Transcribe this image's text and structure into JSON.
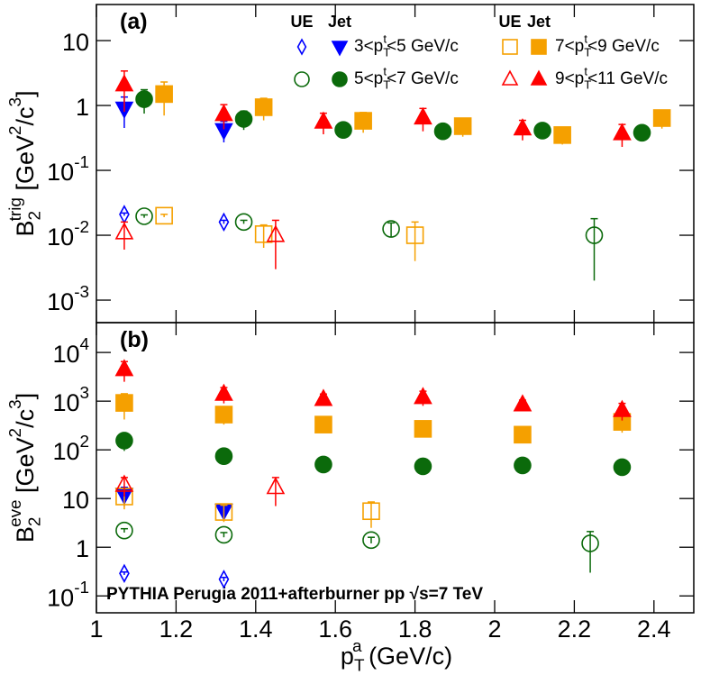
{
  "chart_data": [
    {
      "type": "scatter",
      "panel": "(a)",
      "ylabel": "B_{2}^{trig} [GeV^{2}/c^{3}]",
      "log_y": true,
      "ylim": [
        0.00045,
        36
      ],
      "yticks": [
        {
          "value": 0.001,
          "label": "10^{-3}"
        },
        {
          "value": 0.01,
          "label": "10^{-2}"
        },
        {
          "value": 0.1,
          "label": "10^{-1}"
        },
        1,
        10
      ],
      "legend_headers": [
        "UE",
        "Jet"
      ],
      "series": [
        {
          "name": "3<p_{T}^{t}<5 GeV/c",
          "color": "#0000ff",
          "ue": {
            "marker": "diamond",
            "filled": false,
            "x": [
              1.07,
              1.32
            ],
            "values": [
              0.021,
              0.016
            ],
            "errors": [
              0.001,
              0.001
            ]
          },
          "jet": {
            "marker": "triangle-down",
            "filled": true,
            "x": [
              1.07,
              1.32
            ],
            "values": [
              0.9,
              0.42
            ],
            "errors": [
              0.45,
              0.15
            ]
          }
        },
        {
          "name": "5<p_{T}^{t}<7 GeV/c",
          "color": "#0b6a0b",
          "ue": {
            "marker": "circle",
            "filled": false,
            "x": [
              1.12,
              1.37,
              1.74,
              2.25
            ],
            "values": [
              0.0196,
              0.016,
              0.0125,
              0.01
            ],
            "errors": [
              0.001,
              0.001,
              0.003,
              0.008
            ]
          },
          "jet": {
            "marker": "circle",
            "filled": true,
            "x": [
              1.12,
              1.37,
              1.62,
              1.87,
              2.12,
              2.37
            ],
            "values": [
              1.25,
              0.62,
              0.42,
              0.4,
              0.41,
              0.38
            ],
            "errors": [
              0.5,
              0.2,
              0.1,
              0.1,
              0.1,
              0.1
            ]
          }
        },
        {
          "name": "7<p_{T}^{t}<9 GeV/c",
          "color": "#f5a000",
          "ue": {
            "marker": "square",
            "filled": false,
            "x": [
              1.17,
              1.42,
              1.8
            ],
            "values": [
              0.02,
              0.0104,
              0.01
            ],
            "errors": [
              0.001,
              0.004,
              0.006
            ]
          },
          "jet": {
            "marker": "square",
            "filled": true,
            "x": [
              1.17,
              1.42,
              1.67,
              1.92,
              2.17,
              2.42
            ],
            "values": [
              1.5,
              0.94,
              0.58,
              0.48,
              0.35,
              0.64
            ],
            "errors": [
              0.8,
              0.35,
              0.2,
              0.15,
              0.1,
              0.2
            ]
          }
        },
        {
          "name": "9<p_{T}^{t}<11 GeV/c",
          "color": "#ff0000",
          "ue": {
            "marker": "triangle-up",
            "filled": false,
            "x": [
              1.07,
              1.45
            ],
            "values": [
              0.011,
              0.01
            ],
            "errors": [
              0.005,
              0.007
            ]
          },
          "jet": {
            "marker": "triangle-up",
            "filled": true,
            "x": [
              1.07,
              1.32,
              1.57,
              1.82,
              2.07,
              2.32
            ],
            "values": [
              2.1,
              0.73,
              0.56,
              0.65,
              0.44,
              0.37
            ],
            "errors": [
              1.3,
              0.3,
              0.2,
              0.25,
              0.15,
              0.14
            ]
          }
        }
      ]
    },
    {
      "type": "scatter",
      "panel": "(b)",
      "ylabel": "B_{2}^{eve} [GeV^{2}/c^{3}]",
      "log_y": true,
      "xlabel": "p_{T}^{a} (GeV/c)",
      "xlim": [
        1,
        2.5
      ],
      "xticks": [
        1,
        1.2,
        1.4,
        1.6,
        1.8,
        2,
        2.2,
        2.4
      ],
      "ylim": [
        0.045,
        41000
      ],
      "yticks": [
        {
          "value": 0.1,
          "label": "10^{-1}"
        },
        1,
        10,
        {
          "value": 100,
          "label": "10^{2}"
        },
        {
          "value": 1000,
          "label": "10^{3}"
        },
        {
          "value": 10000,
          "label": "10^{4}"
        }
      ],
      "annotation": "PYTHIA Perugia 2011+afterburner pp  √s=7 TeV",
      "series": [
        {
          "color": "#0000ff",
          "ue": {
            "marker": "diamond",
            "filled": false,
            "x": [
              1.07,
              1.32
            ],
            "values": [
              0.29,
              0.22
            ],
            "errors": [
              0.02,
              0.02
            ]
          },
          "jet": {
            "marker": "triangle-down",
            "filled": true,
            "x": [
              1.07,
              1.32
            ],
            "values": [
              12,
              5.7
            ],
            "errors": [
              5,
              1.5
            ]
          }
        },
        {
          "color": "#0b6a0b",
          "ue": {
            "marker": "circle",
            "filled": false,
            "x": [
              1.07,
              1.32,
              1.69,
              2.24
            ],
            "values": [
              2.2,
              1.8,
              1.4,
              1.2
            ],
            "errors": [
              0.2,
              0.2,
              0.2,
              0.9
            ]
          },
          "jet": {
            "marker": "circle",
            "filled": true,
            "x": [
              1.07,
              1.32,
              1.57,
              1.82,
              2.07,
              2.32
            ],
            "values": [
              155,
              74,
              50,
              46,
              48,
              44
            ],
            "errors": [
              60,
              25,
              12,
              10,
              10,
              8
            ]
          }
        },
        {
          "color": "#f5a000",
          "ue": {
            "marker": "square",
            "filled": false,
            "x": [
              1.07,
              1.32,
              1.69
            ],
            "values": [
              11,
              5.3,
              5.5
            ],
            "errors": [
              5,
              2,
              3
            ]
          },
          "jet": {
            "marker": "square",
            "filled": true,
            "x": [
              1.07,
              1.32,
              1.57,
              1.82,
              2.07,
              2.32
            ],
            "values": [
              920,
              530,
              330,
              270,
              205,
              375
            ],
            "errors": [
              500,
              200,
              100,
              80,
              60,
              150
            ]
          }
        },
        {
          "color": "#ff0000",
          "ue": {
            "marker": "triangle-up",
            "filled": false,
            "x": [
              1.07,
              1.45
            ],
            "values": [
              19,
              17
            ],
            "errors": [
              8,
              10
            ]
          },
          "jet": {
            "marker": "triangle-up",
            "filled": true,
            "x": [
              1.07,
              1.32,
              1.57,
              1.82,
              2.07,
              2.32
            ],
            "values": [
              4500,
              1400,
              1100,
              1200,
              850,
              650
            ],
            "errors": [
              2000,
              500,
              300,
              400,
              200,
              250
            ]
          }
        }
      ]
    }
  ]
}
